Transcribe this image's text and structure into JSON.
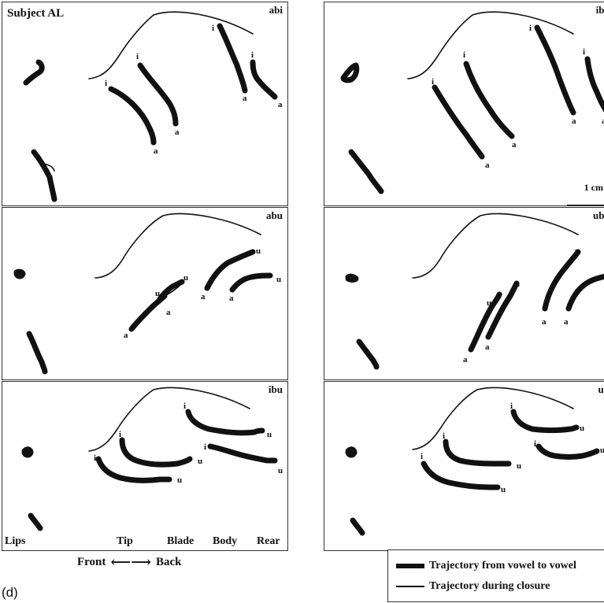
{
  "subject_title": "Subject AL",
  "panels": {
    "abi": {
      "label": "abi"
    },
    "iba": {
      "label": "iba"
    },
    "abu": {
      "label": "abu"
    },
    "uba": {
      "label": "uba"
    },
    "ibu": {
      "label": "ibu"
    },
    "ubi": {
      "label": "ub"
    }
  },
  "scale": {
    "label": "1 cm"
  },
  "axis": {
    "labels": [
      "Lips",
      "Tip",
      "Blade",
      "Body",
      "Rear"
    ],
    "front": "Front",
    "back": "Back",
    "arrow": "⟵⟶"
  },
  "legend": {
    "thick": "Trajectory from vowel to vowel",
    "thin": "Trajectory during closure"
  },
  "figure_tag": "(d)"
}
